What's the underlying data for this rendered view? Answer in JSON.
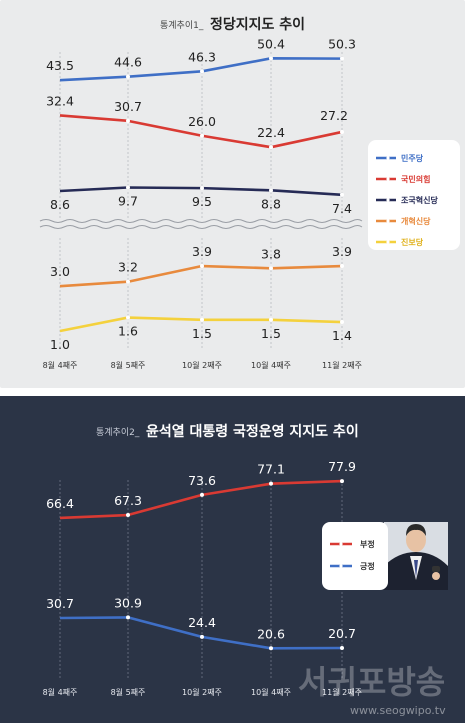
{
  "colors": {
    "panel1_bg": "#eaebec",
    "panel2_bg": "#2b3446",
    "blue": "#3f6fc6",
    "red": "#d93a33",
    "navy": "#262b56",
    "orange": "#e88a3d",
    "yellow": "#f4d13d"
  },
  "chart_data": [
    {
      "type": "line",
      "title": "정당지지도 추이",
      "title_prefix": "통계추이1_",
      "x_categories": [
        "8월 4째주",
        "8월 5째주",
        "10월 2째주",
        "10월 4째주",
        "11월 2째주"
      ],
      "series": [
        {
          "name": "민주당",
          "color": "#3f6fc6",
          "values": [
            43.5,
            44.6,
            46.3,
            50.4,
            50.3
          ]
        },
        {
          "name": "국민의힘",
          "color": "#d93a33",
          "values": [
            32.4,
            30.7,
            26.0,
            22.4,
            27.2
          ]
        },
        {
          "name": "조국혁신당",
          "color": "#262b56",
          "values": [
            8.6,
            9.7,
            9.5,
            8.8,
            7.4
          ]
        },
        {
          "name": "개혁신당",
          "color": "#e88a3d",
          "values": [
            3.0,
            3.2,
            3.9,
            3.8,
            3.9
          ]
        },
        {
          "name": "진보당",
          "color": "#f4d13d",
          "values": [
            1.0,
            1.6,
            1.5,
            1.5,
            1.4
          ]
        }
      ],
      "value_labels": [
        [
          "43.5",
          "44.6",
          "46.3",
          "50.4",
          "50.3"
        ],
        [
          "32.4",
          "30.7",
          "26.0",
          "22.4",
          "27.2"
        ],
        [
          "8.6",
          "9.7",
          "9.5",
          "8.8",
          "7.4"
        ],
        [
          "3.0",
          "3.2",
          "3.9",
          "3.8",
          "3.9"
        ],
        [
          "1.0",
          "1.6",
          "1.5",
          "1.5",
          "1.4"
        ]
      ],
      "axis_break": true,
      "legend_position": "right"
    },
    {
      "type": "line",
      "title": "윤석열 대통령 국정운영 지지도 추이",
      "title_prefix": "통계추이2_",
      "x_categories": [
        "8월 4째주",
        "8월 5째주",
        "10월 2째주",
        "10월 4째주",
        "11월 2째주"
      ],
      "series": [
        {
          "name": "부정",
          "color": "#d93a33",
          "values": [
            66.4,
            67.3,
            73.6,
            77.1,
            77.9
          ]
        },
        {
          "name": "긍정",
          "color": "#3f6fc6",
          "values": [
            30.7,
            30.9,
            24.4,
            20.6,
            20.7
          ]
        }
      ],
      "value_labels": [
        [
          "66.4",
          "67.3",
          "73.6",
          "77.1",
          "77.9"
        ],
        [
          "30.7",
          "30.9",
          "24.4",
          "20.6",
          "20.7"
        ]
      ],
      "legend_position": "right"
    }
  ],
  "watermark": {
    "name": "서귀포방송",
    "url": "www.seogwipo.tv"
  }
}
